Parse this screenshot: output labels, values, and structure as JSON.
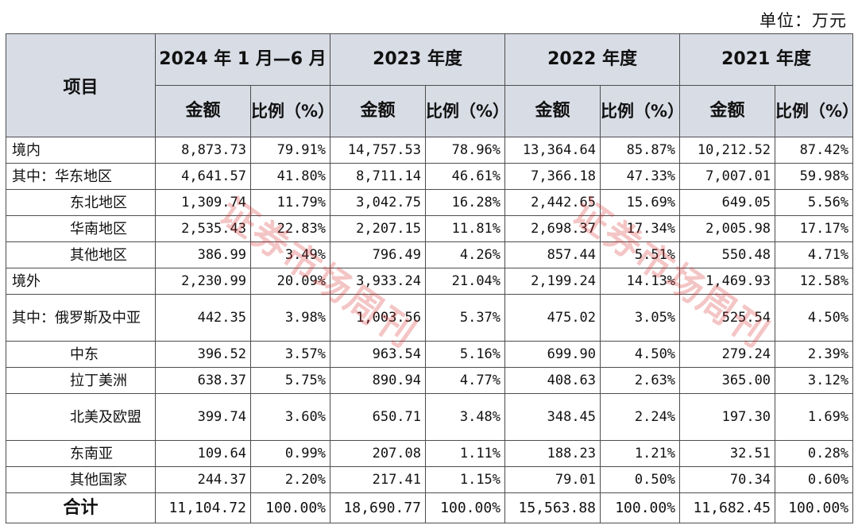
{
  "unit_label": "单位：万元",
  "header": {
    "item": "项目",
    "periods": [
      "2024 年 1 月—6 月",
      "2023 年度",
      "2022 年度",
      "2021 年度"
    ],
    "amount": "金额",
    "ratio": "比例（%）"
  },
  "rows": [
    {
      "label": "境内",
      "indent": 0,
      "values": [
        "8,873.73",
        "79.91%",
        "14,757.53",
        "78.96%",
        "13,364.64",
        "85.87%",
        "10,212.52",
        "87.42%"
      ]
    },
    {
      "label": "其中：华东地区",
      "indent": 0,
      "values": [
        "4,641.57",
        "41.80%",
        "8,711.14",
        "46.61%",
        "7,366.18",
        "47.33%",
        "7,007.01",
        "59.98%"
      ]
    },
    {
      "label": "东北地区",
      "indent": 1,
      "values": [
        "1,309.74",
        "11.79%",
        "3,042.75",
        "16.28%",
        "2,442.65",
        "15.69%",
        "649.05",
        "5.56%"
      ]
    },
    {
      "label": "华南地区",
      "indent": 1,
      "values": [
        "2,535.43",
        "22.83%",
        "2,207.15",
        "11.81%",
        "2,698.37",
        "17.34%",
        "2,005.98",
        "17.17%"
      ]
    },
    {
      "label": "其他地区",
      "indent": 1,
      "values": [
        "386.99",
        "3.49%",
        "796.49",
        "4.26%",
        "857.44",
        "5.51%",
        "550.48",
        "4.71%"
      ]
    },
    {
      "label": "境外",
      "indent": 0,
      "values": [
        "2,230.99",
        "20.09%",
        "3,933.24",
        "21.04%",
        "2,199.24",
        "14.13%",
        "1,469.93",
        "12.58%"
      ]
    },
    {
      "label": "其中：俄罗斯及中亚",
      "indent": 0,
      "tall": true,
      "values": [
        "442.35",
        "3.98%",
        "1,003.56",
        "5.37%",
        "475.02",
        "3.05%",
        "525.54",
        "4.50%"
      ]
    },
    {
      "label": "中东",
      "indent": 1,
      "values": [
        "396.52",
        "3.57%",
        "963.54",
        "5.16%",
        "699.90",
        "4.50%",
        "279.24",
        "2.39%"
      ]
    },
    {
      "label": "拉丁美洲",
      "indent": 1,
      "values": [
        "638.37",
        "5.75%",
        "890.94",
        "4.77%",
        "408.63",
        "2.63%",
        "365.00",
        "3.12%"
      ]
    },
    {
      "label": "北美及欧盟",
      "indent": 1,
      "tall": true,
      "values": [
        "399.74",
        "3.60%",
        "650.71",
        "3.48%",
        "348.45",
        "2.24%",
        "197.30",
        "1.69%"
      ]
    },
    {
      "label": "东南亚",
      "indent": 1,
      "values": [
        "109.64",
        "0.99%",
        "207.08",
        "1.11%",
        "188.23",
        "1.21%",
        "32.51",
        "0.28%"
      ]
    },
    {
      "label": "其他国家",
      "indent": 1,
      "values": [
        "244.37",
        "2.20%",
        "217.41",
        "1.15%",
        "79.01",
        "0.50%",
        "70.34",
        "0.60%"
      ]
    },
    {
      "label": "合计",
      "indent": 0,
      "total": true,
      "values": [
        "11,104.72",
        "100.00%",
        "18,690.77",
        "100.00%",
        "15,563.88",
        "100.00%",
        "11,682.45",
        "100.00%"
      ]
    }
  ],
  "watermark": {
    "text": "证券市场周刊",
    "color": "#d72d2d"
  }
}
